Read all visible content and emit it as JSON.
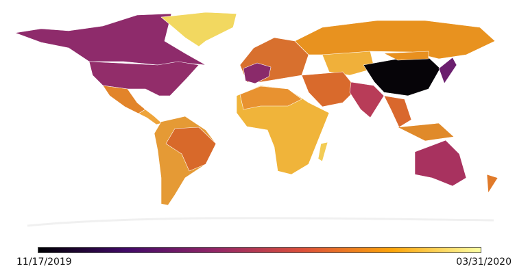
{
  "colorbar": {
    "start_label": "11/17/2019",
    "end_label": "03/31/2020",
    "colormap": "inferno",
    "stops": [
      "#000004",
      "#420a68",
      "#932667",
      "#dd513a",
      "#fca50a",
      "#fcffa4"
    ]
  },
  "regions": [
    {
      "id": "canada",
      "color": "#8e2b6b"
    },
    {
      "id": "usa",
      "color": "#922d6a"
    },
    {
      "id": "mexico",
      "color": "#e2842a"
    },
    {
      "id": "central-america",
      "color": "#eea43a"
    },
    {
      "id": "greenland",
      "color": "#f2d860"
    },
    {
      "id": "south-america",
      "color": "#e59a35"
    },
    {
      "id": "brazil",
      "color": "#d8692a"
    },
    {
      "id": "africa",
      "color": "#f0b43a"
    },
    {
      "id": "north-africa",
      "color": "#e89230"
    },
    {
      "id": "madagascar",
      "color": "#f3cc55"
    },
    {
      "id": "europe",
      "color": "#d8702e"
    },
    {
      "id": "western-europe",
      "color": "#8a2a6a"
    },
    {
      "id": "russia",
      "color": "#e8921f"
    },
    {
      "id": "central-asia",
      "color": "#f0b03a"
    },
    {
      "id": "middle-east",
      "color": "#d96a2c"
    },
    {
      "id": "india",
      "color": "#b83c58"
    },
    {
      "id": "china",
      "color": "#060408"
    },
    {
      "id": "mongolia",
      "color": "#e8901f"
    },
    {
      "id": "southeast-asia",
      "color": "#d9682d"
    },
    {
      "id": "indonesia",
      "color": "#e08a2a"
    },
    {
      "id": "japan",
      "color": "#6b1f6e"
    },
    {
      "id": "australia",
      "color": "#a8325f"
    },
    {
      "id": "new-zealand",
      "color": "#e07a2a"
    }
  ]
}
